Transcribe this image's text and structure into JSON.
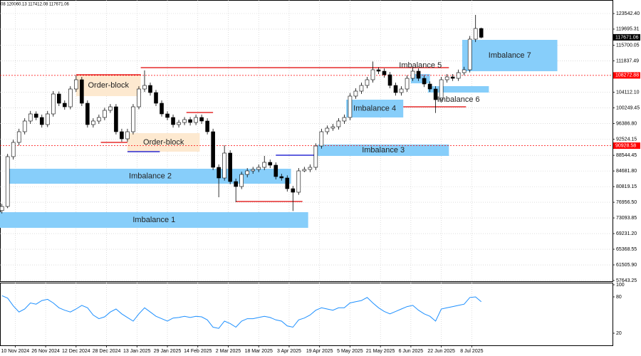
{
  "header": "08 120060.13 117412.08 117671.06",
  "chart_data": {
    "type": "candlestick",
    "x": [
      "2024-11-03",
      "2024-11-06",
      "2024-11-09",
      "2024-11-12",
      "2024-11-15",
      "2024-11-18",
      "2024-11-21",
      "2024-11-24",
      "2024-11-27",
      "2024-11-30",
      "2024-12-03",
      "2024-12-06",
      "2024-12-09",
      "2024-12-12",
      "2024-12-15",
      "2024-12-18",
      "2024-12-21",
      "2024-12-24",
      "2024-12-27",
      "2024-12-30",
      "2025-01-02",
      "2025-01-05",
      "2025-01-08",
      "2025-01-11",
      "2025-01-14",
      "2025-01-17",
      "2025-01-20",
      "2025-01-23",
      "2025-01-26",
      "2025-01-29",
      "2025-02-01",
      "2025-02-04",
      "2025-02-07",
      "2025-02-10",
      "2025-02-13",
      "2025-02-16",
      "2025-02-19",
      "2025-02-22",
      "2025-02-25",
      "2025-02-28",
      "2025-03-03",
      "2025-03-06",
      "2025-03-09",
      "2025-03-12",
      "2025-03-15",
      "2025-03-18",
      "2025-03-21",
      "2025-03-24",
      "2025-03-27",
      "2025-03-30",
      "2025-04-02",
      "2025-04-05",
      "2025-04-08",
      "2025-04-11",
      "2025-04-14",
      "2025-04-17",
      "2025-04-20",
      "2025-04-23",
      "2025-04-26",
      "2025-04-29",
      "2025-05-02",
      "2025-05-05",
      "2025-05-08",
      "2025-05-11",
      "2025-05-14",
      "2025-05-17",
      "2025-05-20",
      "2025-05-23",
      "2025-05-26",
      "2025-05-29",
      "2025-06-01",
      "2025-06-04",
      "2025-06-07",
      "2025-06-10",
      "2025-06-13",
      "2025-06-16",
      "2025-06-19",
      "2025-06-22",
      "2025-06-25",
      "2025-06-28",
      "2025-07-01",
      "2025-07-04",
      "2025-07-07",
      "2025-07-10",
      "2025-07-13"
    ],
    "ohlc": [
      [
        74900,
        76600,
        74200,
        75920
      ],
      [
        75920,
        88900,
        75500,
        88220
      ],
      [
        88220,
        92400,
        87500,
        91735
      ],
      [
        91735,
        95100,
        91000,
        94370
      ],
      [
        94370,
        97700,
        93700,
        97010
      ],
      [
        97010,
        99500,
        96300,
        98765
      ],
      [
        98765,
        99400,
        97200,
        97890
      ],
      [
        97890,
        98600,
        95400,
        96130
      ],
      [
        96130,
        99500,
        95500,
        98765
      ],
      [
        98765,
        104400,
        98100,
        103685
      ],
      [
        103685,
        104300,
        100700,
        101400
      ],
      [
        101400,
        102100,
        99800,
        100520
      ],
      [
        100520,
        105600,
        99900,
        104915
      ],
      [
        104915,
        108300,
        104200,
        107200
      ],
      [
        107200,
        107900,
        100700,
        101400
      ],
      [
        101400,
        102100,
        95400,
        96130
      ],
      [
        96130,
        97700,
        95400,
        97010
      ],
      [
        97010,
        98600,
        96300,
        97890
      ],
      [
        97890,
        100300,
        97200,
        99645
      ],
      [
        99645,
        101200,
        99000,
        100520
      ],
      [
        100520,
        101200,
        93700,
        94370
      ],
      [
        94370,
        95100,
        91900,
        92615
      ],
      [
        92615,
        95100,
        91900,
        94370
      ],
      [
        94370,
        101200,
        93700,
        100520
      ],
      [
        100520,
        105600,
        99900,
        104915
      ],
      [
        104915,
        109500,
        104200,
        105795
      ],
      [
        105795,
        106500,
        103300,
        104035
      ],
      [
        104035,
        104700,
        100700,
        101400
      ],
      [
        101400,
        102100,
        98100,
        98765
      ],
      [
        98765,
        99400,
        97200,
        97890
      ],
      [
        97890,
        98600,
        95400,
        96130
      ],
      [
        96130,
        97300,
        95400,
        96655
      ],
      [
        96655,
        98000,
        96000,
        97360
      ],
      [
        97360,
        98000,
        95900,
        96655
      ],
      [
        96655,
        98600,
        96000,
        97890
      ],
      [
        97890,
        98600,
        96300,
        97010
      ],
      [
        97010,
        97700,
        93700,
        94370
      ],
      [
        94370,
        95100,
        84900,
        85585
      ],
      [
        85585,
        86300,
        78200,
        82950
      ],
      [
        82950,
        91000,
        82300,
        89100
      ],
      [
        89100,
        89800,
        81400,
        82070
      ],
      [
        82070,
        82800,
        77000,
        80840
      ],
      [
        80840,
        84500,
        80200,
        83830
      ],
      [
        83830,
        85400,
        83100,
        84705
      ],
      [
        84705,
        85700,
        84000,
        85060
      ],
      [
        85060,
        86300,
        84400,
        85585
      ],
      [
        85585,
        88400,
        84900,
        86815
      ],
      [
        86815,
        87500,
        85400,
        86115
      ],
      [
        86115,
        86800,
        82600,
        83300
      ],
      [
        83300,
        84000,
        82300,
        82950
      ],
      [
        82950,
        83600,
        79600,
        80310
      ],
      [
        80310,
        81000,
        74800,
        79435
      ],
      [
        79435,
        85400,
        78800,
        84705
      ],
      [
        84705,
        85700,
        84400,
        85060
      ],
      [
        85060,
        86300,
        84400,
        85585
      ],
      [
        85585,
        91500,
        84900,
        90855
      ],
      [
        90855,
        95100,
        90200,
        94370
      ],
      [
        94370,
        95900,
        93700,
        95250
      ],
      [
        95250,
        96300,
        94600,
        95600
      ],
      [
        95600,
        97700,
        94900,
        97010
      ],
      [
        97010,
        98600,
        96300,
        97890
      ],
      [
        97890,
        103900,
        97200,
        103160
      ],
      [
        103160,
        105100,
        102500,
        104390
      ],
      [
        104390,
        106500,
        103700,
        105795
      ],
      [
        105795,
        107900,
        105100,
        107200
      ],
      [
        107200,
        111700,
        106500,
        109660
      ],
      [
        109660,
        110300,
        108600,
        109310
      ],
      [
        109310,
        110000,
        107700,
        108430
      ],
      [
        108430,
        109100,
        105100,
        105795
      ],
      [
        105795,
        106500,
        103300,
        104035
      ],
      [
        104035,
        105600,
        103300,
        104915
      ],
      [
        104915,
        108300,
        104200,
        107550
      ],
      [
        107550,
        110300,
        106900,
        109310
      ],
      [
        109310,
        110000,
        106900,
        107550
      ],
      [
        107550,
        108300,
        105400,
        106145
      ],
      [
        106145,
        106800,
        104200,
        104915
      ],
      [
        104915,
        105600,
        99000,
        102280
      ],
      [
        102280,
        107900,
        101600,
        107200
      ],
      [
        107200,
        108600,
        106500,
        107900
      ],
      [
        107900,
        108600,
        106900,
        107550
      ],
      [
        107550,
        109700,
        106900,
        108955
      ],
      [
        108955,
        110400,
        108300,
        109660
      ],
      [
        109660,
        118000,
        109000,
        117215
      ],
      [
        117215,
        123200,
        116500,
        119850
      ],
      [
        119850,
        120060.13,
        117412.08,
        117671.06
      ]
    ],
    "candle_up": "#ffffff",
    "candle_down": "#000000",
    "xlim": [
      "2024-11-02",
      "2025-09-20"
    ],
    "xticks": [
      {
        "value": "2024-11-10",
        "label": "10 Nov 2024"
      },
      {
        "value": "2024-11-26",
        "label": "26 Nov 2024"
      },
      {
        "value": "2024-12-12",
        "label": "12 Dec 2024"
      },
      {
        "value": "2024-12-28",
        "label": "28 Dec 2024"
      },
      {
        "value": "2025-01-13",
        "label": "13 Jan 2025"
      },
      {
        "value": "2025-01-29",
        "label": "29 Jan 2025"
      },
      {
        "value": "2025-02-14",
        "label": "14 Feb 2025"
      },
      {
        "value": "2025-03-02",
        "label": "2 Mar 2025"
      },
      {
        "value": "2025-03-18",
        "label": "18 Mar 2025"
      },
      {
        "value": "2025-04-03",
        "label": "3 Apr 2025"
      },
      {
        "value": "2025-04-19",
        "label": "19 Apr 2025"
      },
      {
        "value": "2025-05-05",
        "label": "5 May 2025"
      },
      {
        "value": "2025-05-21",
        "label": "21 May 2025"
      },
      {
        "value": "2025-06-06",
        "label": "6 Jun 2025"
      },
      {
        "value": "2025-06-22",
        "label": "22 Jun 2025"
      },
      {
        "value": "2025-07-08",
        "label": "8 Jul 2025"
      }
    ],
    "ylim": [
      57467.52,
      126881.34
    ],
    "yticks": [
      {
        "value": 123542.4,
        "label": "123542.40"
      },
      119695.31,
      115700.05,
      111837.49,
      {
        "value": 104112.1,
        "label": "104112.10"
      },
      100249.45,
      {
        "value": 96386.8,
        "label": "96386.80"
      },
      92524.15,
      88544.45,
      {
        "value": 84681.8,
        "label": "84681.80"
      },
      80819.15,
      {
        "value": 76956.5,
        "label": "76956.50"
      },
      73093.85,
      {
        "value": 69231.2,
        "label": "69231.20"
      },
      65368.55,
      {
        "value": 61505.9,
        "label": "61505.90"
      },
      57643.25
    ],
    "grid": true,
    "last_price": 117671.06,
    "levels": [
      108272.88,
      90928.58
    ],
    "level_color": "#ff0000",
    "zones": [
      {
        "label": "Imbalance 1",
        "from": "2024-11-02",
        "to": "2025-04-13",
        "high": 74510,
        "low": 70650,
        "color": "#87cefa",
        "label_side": "center"
      },
      {
        "label": "Imbalance 2",
        "from": "2024-11-07",
        "to": "2025-04-04",
        "high": 85230,
        "low": 81540,
        "color": "#87cefa",
        "label_side": "center"
      },
      {
        "label": "Imbalance 3",
        "from": "2025-04-18",
        "to": "2025-06-26",
        "high": 91210,
        "low": 88400,
        "color": "#87cefa",
        "label_side": "center"
      },
      {
        "label": "Imbalance 4",
        "from": "2025-05-03",
        "to": "2025-06-02",
        "high": 102280,
        "low": 97890,
        "color": "#87cefa",
        "label_side": "center"
      },
      {
        "label": "Imbalance 5",
        "from": "2025-06-06",
        "to": "2025-06-16",
        "high": 108600,
        "low": 106320,
        "color": "#87cefa",
        "label_side": "above"
      },
      {
        "label": "Imbalance 6",
        "from": "2025-06-15",
        "to": "2025-07-17",
        "high": 105620,
        "low": 104040,
        "color": "#87cefa",
        "label_side": "below"
      },
      {
        "label": "Imbalance 7",
        "from": "2025-07-03",
        "to": "2025-08-22",
        "high": 117040,
        "low": 109310,
        "color": "#87cefa",
        "label_side": "center"
      },
      {
        "label": "Order-block",
        "from": "2024-12-12",
        "to": "2025-01-15",
        "high": 108430,
        "low": 103160,
        "color": "#fde9d0",
        "label_side": "center"
      },
      {
        "label": "Order-block",
        "from": "2025-01-08",
        "to": "2025-02-15",
        "high": 94020,
        "low": 89450,
        "color": "#fde9d0",
        "label_side": "center"
      }
    ],
    "segments": [
      {
        "from": "2024-12-12",
        "to": "2025-01-15",
        "price": 108430,
        "color": "#e00000"
      },
      {
        "from": "2025-01-15",
        "to": "2025-06-26",
        "price": 110190,
        "color": "#e00000"
      },
      {
        "from": "2024-12-25",
        "to": "2025-01-08",
        "price": 91735,
        "color": "#e00000"
      },
      {
        "from": "2025-01-08",
        "to": "2025-01-25",
        "price": 89450,
        "color": "#0000cc"
      },
      {
        "from": "2025-02-08",
        "to": "2025-02-22",
        "price": 99120,
        "color": "#e00000"
      },
      {
        "from": "2025-03-06",
        "to": "2025-04-10",
        "price": 77150,
        "color": "#e00000"
      },
      {
        "from": "2025-03-27",
        "to": "2025-04-18",
        "price": 88570,
        "color": "#0000cc"
      },
      {
        "from": "2025-06-02",
        "to": "2025-07-05",
        "price": 100520,
        "color": "#e00000"
      }
    ],
    "rsi": {
      "values": [
        82,
        78,
        65,
        55,
        60,
        70,
        68,
        74,
        76,
        70,
        62,
        58,
        55,
        60,
        66,
        62,
        50,
        44,
        47,
        55,
        60,
        52,
        46,
        40,
        52,
        62,
        55,
        48,
        44,
        40,
        45,
        46,
        48,
        46,
        48,
        47,
        42,
        30,
        28,
        40,
        36,
        30,
        40,
        44,
        44,
        46,
        48,
        46,
        42,
        40,
        32,
        30,
        42,
        45,
        50,
        58,
        62,
        60,
        58,
        62,
        62,
        70,
        72,
        74,
        79,
        70,
        62,
        56,
        52,
        56,
        60,
        64,
        66,
        58,
        52,
        48,
        40,
        60,
        62,
        64,
        66,
        68,
        79,
        80,
        72
      ],
      "color": "#1e90ff",
      "ylim": [
        0,
        103.5
      ],
      "yticks": [
        100,
        80,
        20
      ]
    }
  }
}
